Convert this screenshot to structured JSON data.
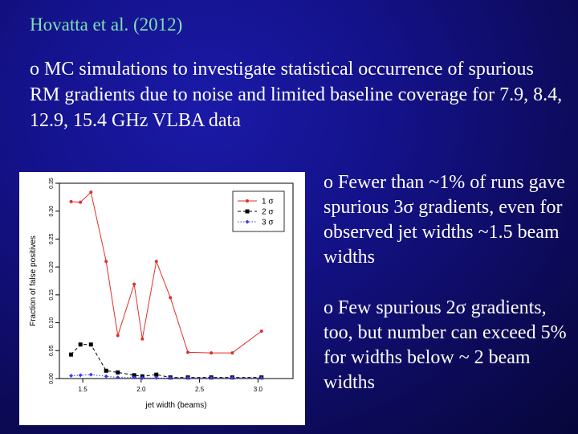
{
  "slide": {
    "title": "Hovatta et al. (2012)",
    "intro_bullet": "o MC simulations to investigate statistical occurrence of spurious RM gradients due to noise and limited baseline coverage for 7.9, 8.4, 12.9, 15.4 GHz VLBA data",
    "bullets": [
      "o Fewer than ~1% of runs gave spurious 3σ gradients, even for observed jet widths ~1.5 beam widths",
      "o Few spurious 2σ gradients, too, but number can exceed 5% for widths below ~ 2 beam widths"
    ]
  },
  "chart_data": {
    "type": "line",
    "xlabel": "jet width (beams)",
    "ylabel": "Fraction of false positives",
    "xlim": [
      1.3,
      3.3
    ],
    "ylim": [
      0.0,
      0.35
    ],
    "xticks": [
      1.5,
      2.0,
      2.5,
      3.0
    ],
    "xtick_labels": [
      "1.5",
      "2.0",
      "2.5",
      "3.0"
    ],
    "yticks": [
      0.0,
      0.05,
      0.1,
      0.15,
      0.2,
      0.25,
      0.3,
      0.35
    ],
    "ytick_labels": [
      "0.00",
      "0.05",
      "0.10",
      "0.15",
      "0.20",
      "0.25",
      "0.30",
      "0.35"
    ],
    "legend_position": "top-right",
    "series": [
      {
        "name": "1 σ",
        "color": "#e0302a",
        "marker": "circle",
        "dash": "solid",
        "x": [
          1.4,
          1.48,
          1.57,
          1.7,
          1.8,
          1.94,
          2.01,
          2.13,
          2.25,
          2.4,
          2.6,
          2.78,
          3.03
        ],
        "y": [
          0.317,
          0.316,
          0.334,
          0.21,
          0.077,
          0.169,
          0.071,
          0.21,
          0.145,
          0.047,
          0.046,
          0.046,
          0.085
        ]
      },
      {
        "name": "2 σ",
        "color": "#000000",
        "marker": "square",
        "dash": "dashed",
        "x": [
          1.4,
          1.48,
          1.57,
          1.7,
          1.8,
          1.94,
          2.01,
          2.13,
          2.25,
          2.4,
          2.6,
          2.78,
          3.03
        ],
        "y": [
          0.043,
          0.061,
          0.061,
          0.014,
          0.011,
          0.006,
          0.004,
          0.007,
          0.002,
          0.002,
          0.002,
          0.002,
          0.002
        ]
      },
      {
        "name": "3 σ",
        "color": "#3a3aee",
        "marker": "diamond",
        "dash": "dotted",
        "x": [
          1.4,
          1.48,
          1.57,
          1.7,
          1.8,
          1.94,
          2.01,
          2.13,
          2.25,
          2.4,
          2.6,
          2.78,
          3.03
        ],
        "y": [
          0.005,
          0.006,
          0.007,
          0.004,
          0.002,
          0.002,
          0.001,
          0.001,
          0.001,
          0.001,
          0.001,
          0.001,
          0.001
        ]
      }
    ]
  }
}
